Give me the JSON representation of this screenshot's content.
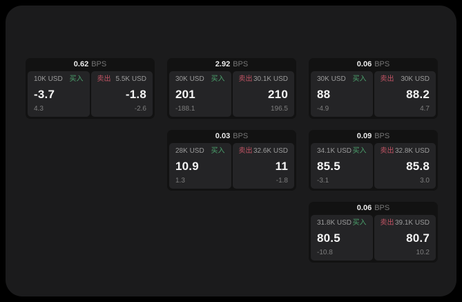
{
  "theme": {
    "page_bg": "#000000",
    "container_bg": "#1b1b1c",
    "card_bg": "#121212",
    "panel_bg": "#242426",
    "buy_color": "#4ba16c",
    "sell_color": "#c25364",
    "value_color": "#f4f4f4",
    "muted_color": "#9c9c9c"
  },
  "labels": {
    "bps_unit": "BPS",
    "buy": "买入",
    "sell": "卖出"
  },
  "cards": [
    {
      "bps": "0.62",
      "buy": {
        "amount": "10K USD",
        "value": "-3.7",
        "sub": "4.3"
      },
      "sell": {
        "amount": "5.5K USD",
        "value": "-1.8",
        "sub": "-2.6"
      }
    },
    {
      "bps": "2.92",
      "buy": {
        "amount": "30K USD",
        "value": "201",
        "sub": "-188.1"
      },
      "sell": {
        "amount": "30.1K USD",
        "value": "210",
        "sub": "196.5"
      }
    },
    {
      "bps": "0.06",
      "buy": {
        "amount": "30K USD",
        "value": "88",
        "sub": "-4.9"
      },
      "sell": {
        "amount": "30K USD",
        "value": "88.2",
        "sub": "4.7"
      }
    },
    {
      "bps": "0.03",
      "buy": {
        "amount": "28K USD",
        "value": "10.9",
        "sub": "1.3"
      },
      "sell": {
        "amount": "32.6K USD",
        "value": "11",
        "sub": "-1.8"
      }
    },
    {
      "bps": "0.09",
      "buy": {
        "amount": "34.1K USD",
        "value": "85.5",
        "sub": "-3.1"
      },
      "sell": {
        "amount": "32.8K USD",
        "value": "85.8",
        "sub": "3.0"
      }
    },
    {
      "bps": "0.06",
      "buy": {
        "amount": "31.8K USD",
        "value": "80.5",
        "sub": "-10.8"
      },
      "sell": {
        "amount": "39.1K USD",
        "value": "80.7",
        "sub": "10.2"
      }
    }
  ]
}
